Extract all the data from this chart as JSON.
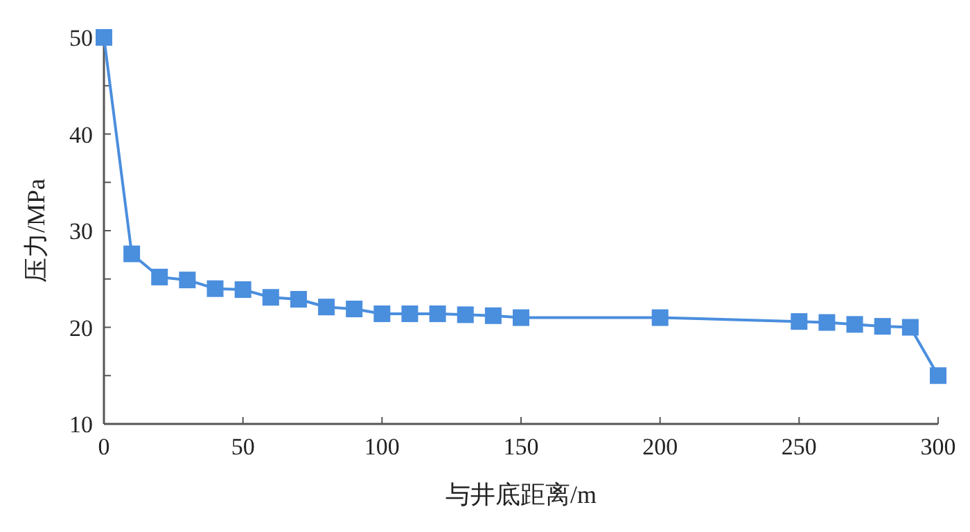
{
  "chart_data": {
    "type": "line",
    "xlabel": "与井底距离/m",
    "ylabel": "压力/MPa",
    "x": [
      0,
      10,
      20,
      30,
      40,
      50,
      60,
      70,
      80,
      90,
      100,
      110,
      120,
      130,
      140,
      150,
      200,
      250,
      260,
      270,
      280,
      290,
      300
    ],
    "series": [
      {
        "color": "#4a8ede",
        "values": [
          50,
          27.6,
          25.2,
          24.9,
          24.0,
          23.9,
          23.1,
          22.9,
          22.1,
          21.9,
          21.4,
          21.4,
          21.4,
          21.3,
          21.2,
          21.0,
          21.0,
          20.6,
          20.5,
          20.3,
          20.1,
          20.0,
          15
        ]
      }
    ],
    "xlim": [
      0,
      300
    ],
    "ylim": [
      10,
      50
    ],
    "xticks": [
      0,
      50,
      100,
      150,
      200,
      250,
      300
    ],
    "yticks": [
      10,
      {
        "value": 15,
        "label": null
      },
      20,
      {
        "value": 25,
        "label": null
      },
      30,
      {
        "value": 35,
        "label": null
      },
      40,
      {
        "value": 45,
        "label": null
      },
      50
    ],
    "marker": "square",
    "line_style": "solid",
    "grid": false
  }
}
